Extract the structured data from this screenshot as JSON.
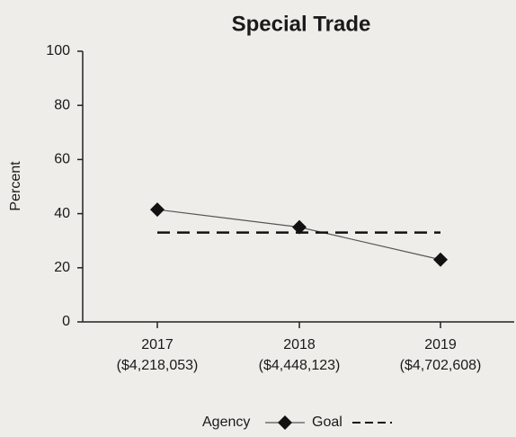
{
  "chart_data": {
    "type": "line",
    "title": "Special Trade",
    "y_label": "Percent",
    "categories": [
      [
        "2017",
        "($4,218,053)"
      ],
      [
        "2018",
        "($4,448,123)"
      ],
      [
        "2019",
        "($4,702,608)"
      ]
    ],
    "series": [
      {
        "name": "Agency",
        "color": "#111111",
        "line_color": "#555555",
        "marker": "diamond",
        "dash": false,
        "values": [
          41.5,
          35,
          23
        ]
      },
      {
        "name": "Goal",
        "color": "#111111",
        "marker": "none",
        "dash": true,
        "values": [
          33,
          33,
          33
        ]
      }
    ],
    "ylim": [
      0,
      100
    ],
    "yticks": [
      0,
      20,
      40,
      60,
      80,
      100
    ],
    "grid": false,
    "legend": "bottom"
  }
}
